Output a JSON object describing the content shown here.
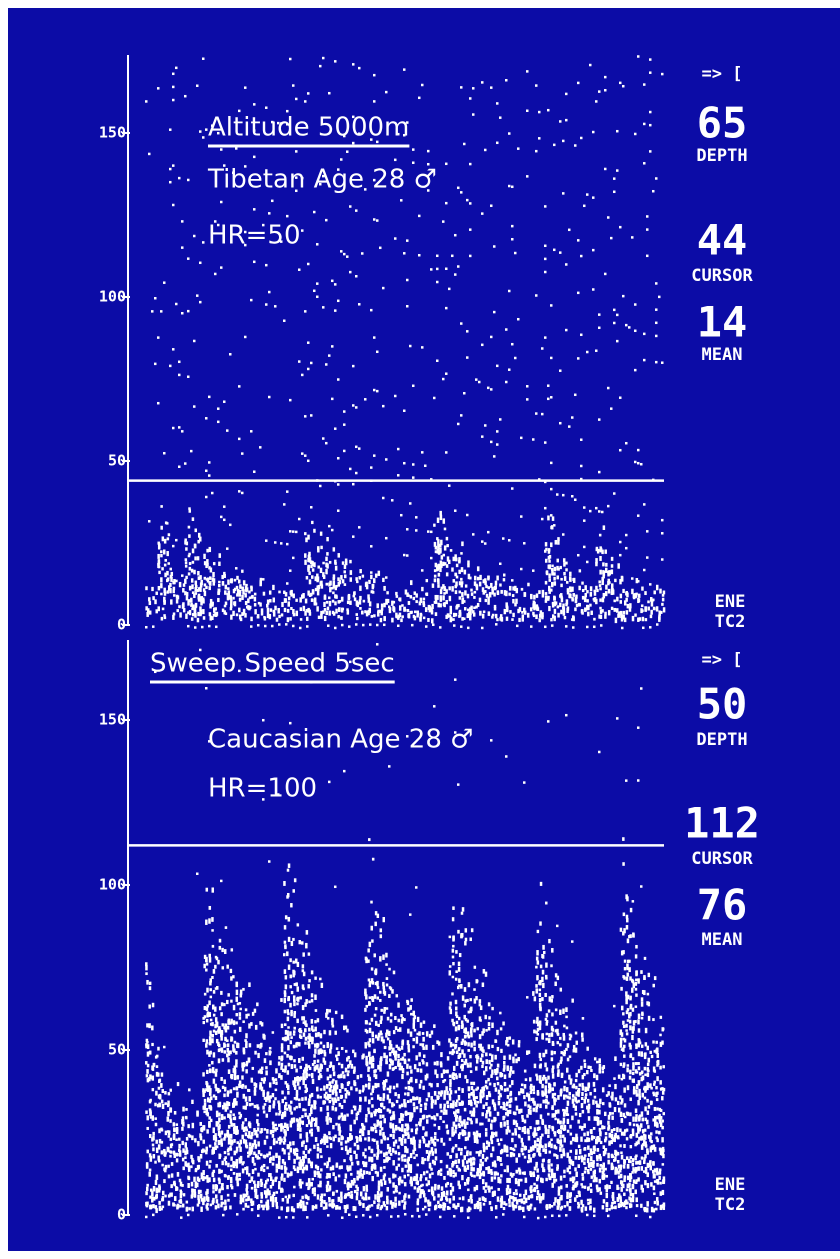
{
  "panels": [
    {
      "title": "Altitude 5000m",
      "subtitle": "Tibetan Age 28 ♂",
      "hr": "HR=50",
      "yticks": [
        0,
        50,
        100,
        150
      ],
      "arrow": "=> [",
      "depth": 65,
      "depth_label": "DEPTH",
      "cursor": 44,
      "cursor_label": "CURSOR",
      "mean": 14,
      "mean_label": "MEAN",
      "footer": [
        "ENE",
        "TC2"
      ]
    },
    {
      "title": "Sweep Speed 5sec",
      "subtitle": "Caucasian Age 28 ♂",
      "hr": "HR=100",
      "yticks": [
        0,
        50,
        100,
        150
      ],
      "arrow": "=> [",
      "depth": 50,
      "depth_label": "DEPTH",
      "cursor": 112,
      "cursor_label": "CURSOR",
      "mean": 76,
      "mean_label": "MEAN",
      "footer": [
        "ENE",
        "TC2"
      ]
    }
  ]
}
